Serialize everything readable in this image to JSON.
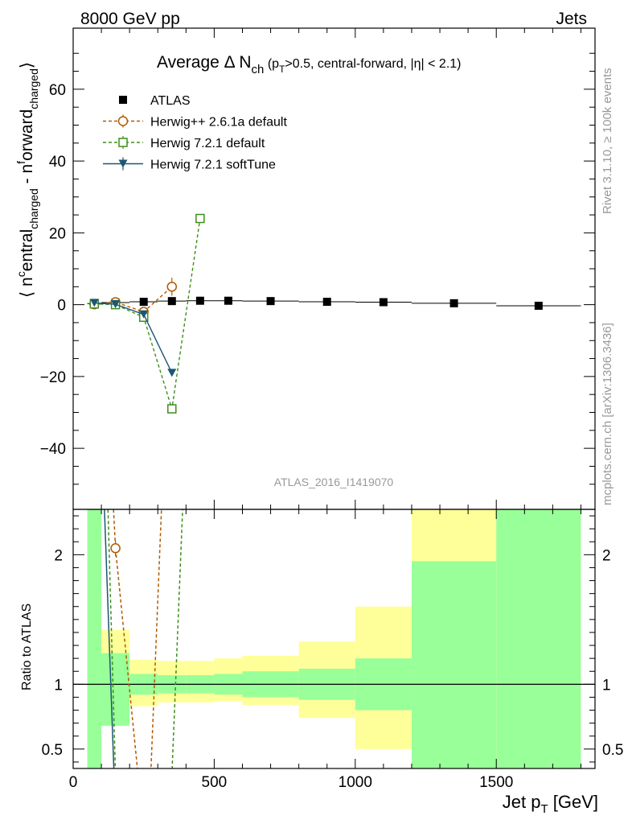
{
  "header": {
    "left": "8000 GeV pp",
    "right": "Jets"
  },
  "side_labels": {
    "top": "Rivet 3.1.10, ≥ 100k events",
    "bottom": "mcplots.cern.ch [arXiv:1306.3436]"
  },
  "watermark": "ATLAS_2016_I1419070",
  "chart_data": {
    "type": "scatter",
    "title": "Average Δ N_ch (p_T>0.5, central-forward, |η| < 2.1)",
    "title_parts": {
      "main": "Average Δ N",
      "sub": "ch",
      "tail_open": " (p",
      "tail_sub": "T",
      "tail_rest": ">0.5, central-forward, |η| < 2.1)"
    },
    "xlabel": "Jet p_T [GeV]",
    "xlabel_parts": {
      "main": "Jet p",
      "sub": "T",
      "rest": " [GeV]"
    },
    "ylabel": "⟨ n^central_charged - n^forward_charged ⟩",
    "ylabel_parts": {
      "open": "⟨ n",
      "sup1": "c",
      "mid1": "entral",
      "sub1": "charged",
      "mid2": " - n",
      "sup2": "f",
      "mid3": "orward",
      "sub2": "charged",
      "close": "⟩"
    },
    "ratio_ylabel": "Ratio to ATLAS",
    "xlim": [
      0,
      1850
    ],
    "ylim": [
      -57,
      77
    ],
    "ratio_ylim": [
      0.35,
      2.35
    ],
    "x_ticks": [
      0,
      500,
      1000,
      1500
    ],
    "x_tick_labels": [
      "0",
      "500",
      "1000",
      "1500"
    ],
    "y_ticks": [
      -40,
      -20,
      0,
      20,
      40,
      60
    ],
    "y_tick_labels": [
      "−40",
      "−20",
      "0",
      "20",
      "40",
      "60"
    ],
    "ratio_ticks": [
      0.5,
      1,
      2
    ],
    "ratio_tick_labels": [
      "0.5",
      "1",
      "2"
    ],
    "legend_position": "top-left",
    "series": [
      {
        "name": "ATLAS",
        "style": "data",
        "color": "#000000",
        "x": [
          75,
          150,
          250,
          350,
          450,
          550,
          700,
          900,
          1100,
          1350,
          1650
        ],
        "y": [
          0.3,
          0.6,
          0.8,
          1.0,
          1.1,
          1.1,
          1.0,
          0.8,
          0.7,
          0.4,
          -0.3
        ],
        "xerr": [
          25,
          50,
          50,
          50,
          50,
          50,
          100,
          100,
          100,
          150,
          150
        ]
      },
      {
        "name": "Herwig++ 2.6.1a default",
        "style": "circle",
        "color": "#b25a00",
        "x": [
          75,
          150,
          250,
          350
        ],
        "y": [
          0.1,
          0.7,
          -2.0,
          5.0
        ],
        "yerr": [
          0.2,
          0.3,
          1.0,
          2.5
        ]
      },
      {
        "name": "Herwig 7.2.1 default",
        "style": "square",
        "color": "#3e8e1a",
        "x": [
          75,
          150,
          250,
          350,
          450
        ],
        "y": [
          0.2,
          0.0,
          -3.5,
          -29.0,
          24.0
        ],
        "yerr": [
          0.2,
          0.3,
          0.8,
          1.2,
          1.0
        ]
      },
      {
        "name": "Herwig 7.2.1 softTune",
        "style": "triangle",
        "color": "#1c5673",
        "x": [
          75,
          150,
          250,
          350
        ],
        "y": [
          0.5,
          0.1,
          -2.7,
          -19.0
        ],
        "yerr": [
          0.1,
          0.2,
          0.5,
          0.8
        ]
      }
    ],
    "ratio_bands": [
      {
        "x0": 50,
        "x1": 100,
        "g0": 0.3,
        "g1": 3.0,
        "y0": 0.3,
        "y1": 3.0
      },
      {
        "x0": 100,
        "x1": 200,
        "g0": 0.68,
        "g1": 1.24,
        "y0": 0.68,
        "y1": 1.42
      },
      {
        "x0": 200,
        "x1": 300,
        "g0": 0.92,
        "g1": 1.08,
        "y0": 0.83,
        "y1": 1.19
      },
      {
        "x0": 300,
        "x1": 400,
        "g0": 0.93,
        "g1": 1.07,
        "y0": 0.86,
        "y1": 1.18
      },
      {
        "x0": 400,
        "x1": 500,
        "g0": 0.93,
        "g1": 1.07,
        "y0": 0.86,
        "y1": 1.18
      },
      {
        "x0": 500,
        "x1": 600,
        "g0": 0.92,
        "g1": 1.08,
        "y0": 0.87,
        "y1": 1.2
      },
      {
        "x0": 600,
        "x1": 800,
        "g0": 0.9,
        "g1": 1.1,
        "y0": 0.84,
        "y1": 1.22
      },
      {
        "x0": 800,
        "x1": 1000,
        "g0": 0.88,
        "g1": 1.12,
        "y0": 0.74,
        "y1": 1.33
      },
      {
        "x0": 1000,
        "x1": 1200,
        "g0": 0.8,
        "g1": 1.2,
        "y0": 0.5,
        "y1": 1.6
      },
      {
        "x0": 1200,
        "x1": 1500,
        "g0": 0.2,
        "g1": 1.95,
        "y0": 0.2,
        "y1": 3.0
      },
      {
        "x0": 1500,
        "x1": 1800,
        "g0": 0.2,
        "g1": 3.0,
        "y0": 0.2,
        "y1": 3.0
      }
    ],
    "ratio_curves": [
      {
        "name": "Herwig++ 2.6.1a default",
        "color": "#b25a00",
        "points": [
          [
            128,
            3.0
          ],
          [
            150,
            2.05
          ],
          [
            230,
            0.3
          ],
          [
            275,
            0.3
          ],
          [
            325,
            3.0
          ]
        ],
        "marker": [
          150,
          2.05
        ]
      },
      {
        "name": "Herwig 7.2.1 default",
        "color": "#3e8e1a",
        "points": [
          [
            115,
            3.0
          ],
          [
            150,
            0.3
          ]
        ],
        "segment2": [
          [
            350,
            0.3
          ],
          [
            400,
            3.0
          ]
        ]
      },
      {
        "name": "Herwig 7.2.1 softTune",
        "color": "#1c5673",
        "points": [
          [
            100,
            3.0
          ],
          [
            145,
            0.3
          ]
        ]
      }
    ],
    "ratio_band_colors": {
      "yellow": "#ffff99",
      "green": "#99ff99"
    }
  }
}
